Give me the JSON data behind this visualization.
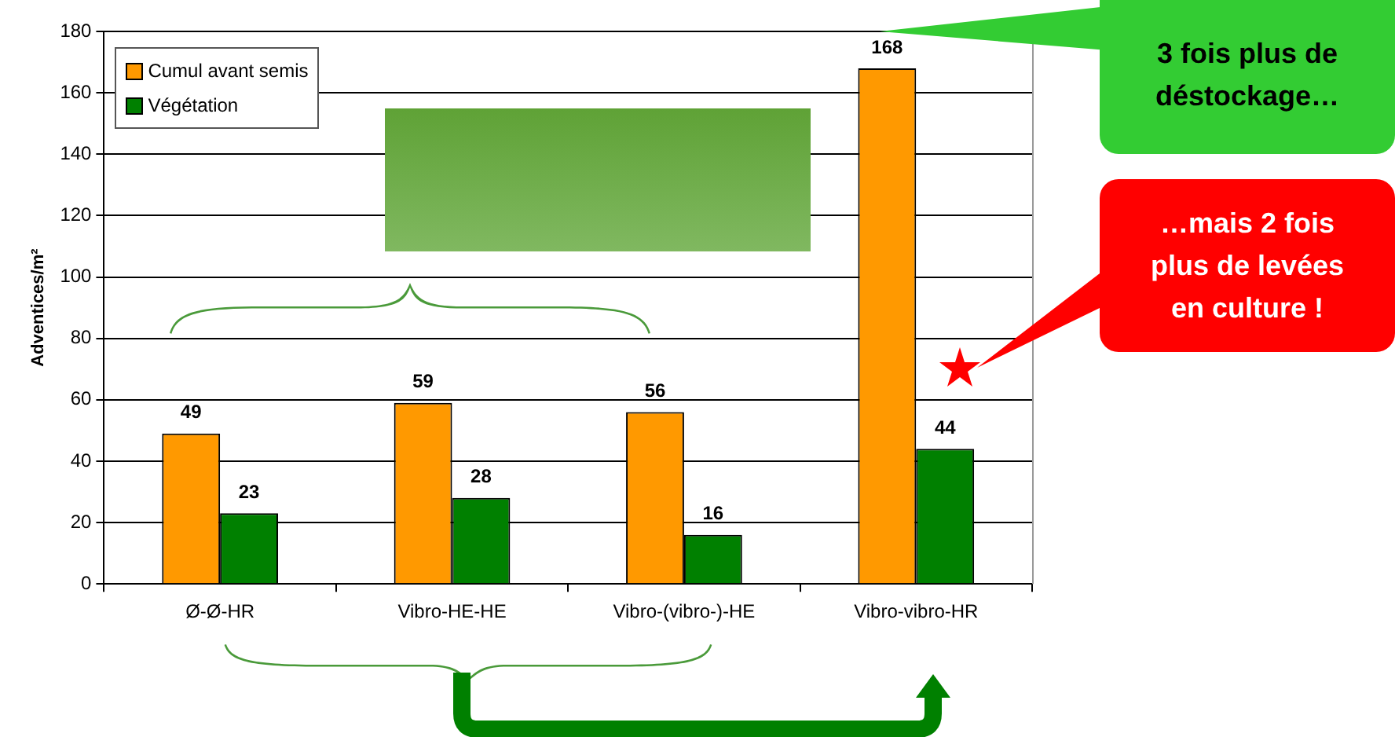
{
  "chart_data": {
    "type": "bar",
    "ylabel": "Adventices/m²",
    "categories": [
      "Ø-Ø-HR",
      "Vibro-HE-HE",
      "Vibro-(vibro-)-HE",
      "Vibro-vibro-HR"
    ],
    "series": [
      {
        "name": "Cumul avant semis",
        "color": "#ff9900",
        "values": [
          49,
          59,
          56,
          168
        ]
      },
      {
        "name": "Végétation",
        "color": "#008000",
        "values": [
          23,
          28,
          16,
          44
        ]
      }
    ],
    "ylim": [
      0,
      180
    ],
    "yticks": [
      0,
      20,
      40,
      60,
      80,
      100,
      120,
      140,
      160,
      180
    ],
    "grid": "y",
    "legend": "top left",
    "data_labels": true,
    "annotations": [
      "3 fois plus de déstockage…",
      "…mais 2 fois plus de levées en culture !"
    ]
  }
}
